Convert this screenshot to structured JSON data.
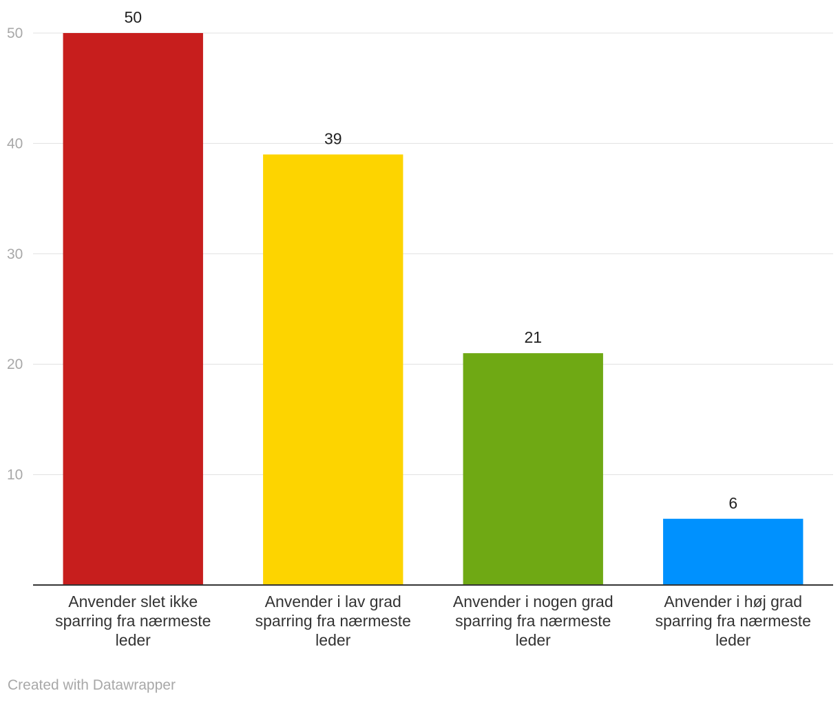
{
  "chart_data": {
    "type": "bar",
    "categories": [
      [
        "Anvender slet ikke",
        "sparring fra nærmeste",
        "leder"
      ],
      [
        "Anvender i lav grad",
        "sparring fra nærmeste",
        "leder"
      ],
      [
        "Anvender i nogen grad",
        "sparring fra nærmeste",
        "leder"
      ],
      [
        "Anvender i høj grad",
        "sparring fra nærmeste",
        "leder"
      ]
    ],
    "values": [
      50,
      39,
      21,
      6
    ],
    "value_labels": [
      "50",
      "39",
      "21",
      "6"
    ],
    "colors": [
      "#c71e1d",
      "#fdd400",
      "#6fa914",
      "#0091fe"
    ],
    "ylim": [
      0,
      50
    ],
    "yticks": [
      10,
      20,
      30,
      40,
      50
    ],
    "ytick_labels": [
      "10",
      "20",
      "30",
      "40",
      "50"
    ],
    "grid": true,
    "title": "",
    "xlabel": "",
    "ylabel": ""
  },
  "footer": {
    "credit": "Created with Datawrapper"
  }
}
